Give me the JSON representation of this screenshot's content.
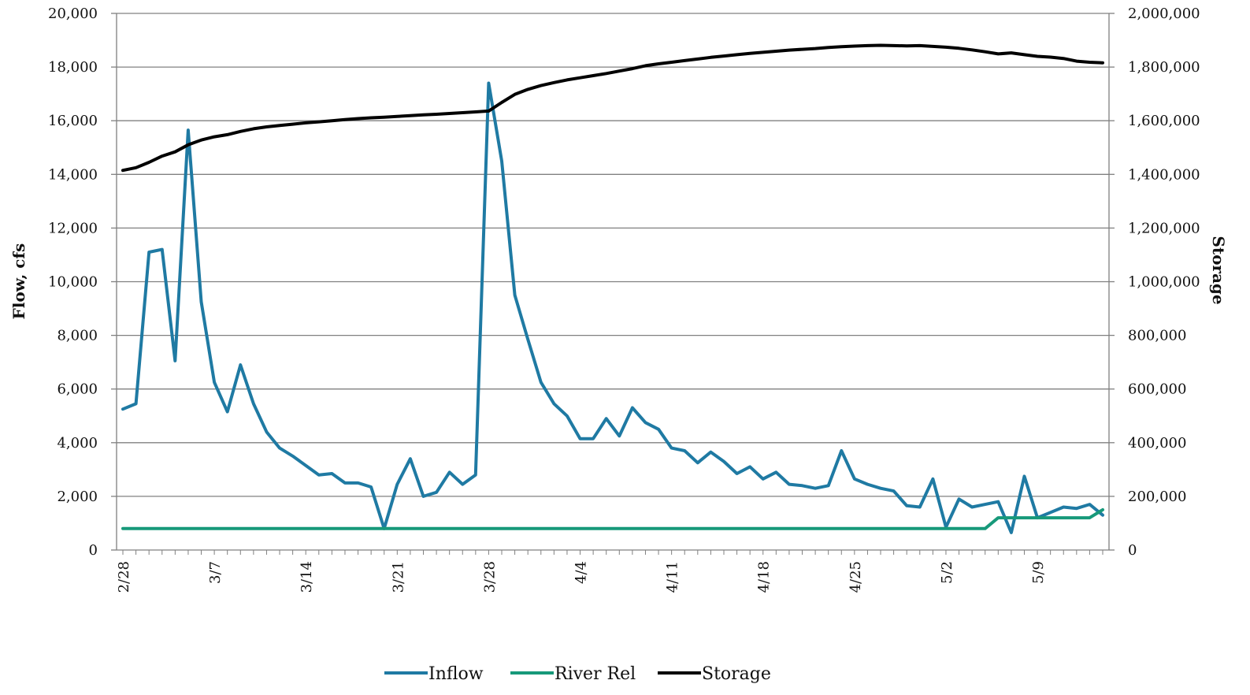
{
  "chart_data": {
    "type": "line",
    "x": [
      "2/28",
      "3/1",
      "3/2",
      "3/3",
      "3/4",
      "3/5",
      "3/6",
      "3/7",
      "3/8",
      "3/9",
      "3/10",
      "3/11",
      "3/12",
      "3/13",
      "3/14",
      "3/15",
      "3/16",
      "3/17",
      "3/18",
      "3/19",
      "3/20",
      "3/21",
      "3/22",
      "3/23",
      "3/24",
      "3/25",
      "3/26",
      "3/27",
      "3/28",
      "3/29",
      "3/30",
      "3/31",
      "4/1",
      "4/2",
      "4/3",
      "4/4",
      "4/5",
      "4/6",
      "4/7",
      "4/8",
      "4/9",
      "4/10",
      "4/11",
      "4/12",
      "4/13",
      "4/14",
      "4/15",
      "4/16",
      "4/17",
      "4/18",
      "4/19",
      "4/20",
      "4/21",
      "4/22",
      "4/23",
      "4/24",
      "4/25",
      "4/26",
      "4/27",
      "4/28",
      "4/29",
      "4/30",
      "5/1",
      "5/2",
      "5/3",
      "5/4",
      "5/5",
      "5/6",
      "5/7",
      "5/8",
      "5/9",
      "5/10",
      "5/11",
      "5/12",
      "5/13",
      "5/14"
    ],
    "xticks": [
      "2/28",
      "3/7",
      "3/14",
      "3/21",
      "3/28",
      "4/4",
      "4/11",
      "4/18",
      "4/25",
      "5/2",
      "5/9"
    ],
    "series": [
      {
        "name": "Inflow",
        "axis": "left",
        "color": "#1f7aa3",
        "values": [
          5250,
          5450,
          11100,
          11200,
          7050,
          15650,
          9250,
          6250,
          5150,
          6900,
          5450,
          4400,
          3800,
          3500,
          3150,
          2800,
          2850,
          2500,
          2500,
          2350,
          800,
          2450,
          3400,
          2000,
          2150,
          2900,
          2450,
          2800,
          17400,
          14500,
          9500,
          7850,
          6250,
          5450,
          5000,
          4150,
          4150,
          4900,
          4250,
          5300,
          4750,
          4500,
          3800,
          3700,
          3250,
          3650,
          3300,
          2850,
          3100,
          2650,
          2900,
          2450,
          2400,
          2300,
          2400,
          3700,
          2650,
          2450,
          2300,
          2200,
          1650,
          1600,
          2650,
          850,
          1900,
          1600,
          1700,
          1800,
          650,
          2750,
          1200,
          1400,
          1600,
          1550,
          1700,
          1300
        ]
      },
      {
        "name": "River Rel",
        "axis": "left",
        "color": "#17997a",
        "values": [
          800,
          800,
          800,
          800,
          800,
          800,
          800,
          800,
          800,
          800,
          800,
          800,
          800,
          800,
          800,
          800,
          800,
          800,
          800,
          800,
          800,
          800,
          800,
          800,
          800,
          800,
          800,
          800,
          800,
          800,
          800,
          800,
          800,
          800,
          800,
          800,
          800,
          800,
          800,
          800,
          800,
          800,
          800,
          800,
          800,
          800,
          800,
          800,
          800,
          800,
          800,
          800,
          800,
          800,
          800,
          800,
          800,
          800,
          800,
          800,
          800,
          800,
          800,
          800,
          800,
          800,
          800,
          1200,
          1200,
          1200,
          1200,
          1200,
          1200,
          1200,
          1200,
          1500
        ]
      },
      {
        "name": "Storage",
        "axis": "right",
        "color": "#000000",
        "values": [
          1415000,
          1425000,
          1445000,
          1468000,
          1484000,
          1510000,
          1528000,
          1540000,
          1548000,
          1560000,
          1570000,
          1577000,
          1582000,
          1587000,
          1592000,
          1596000,
          1600000,
          1604000,
          1608000,
          1611000,
          1613000,
          1616000,
          1619000,
          1622000,
          1624000,
          1627000,
          1630000,
          1633000,
          1636000,
          1668000,
          1698000,
          1717000,
          1731000,
          1742000,
          1752000,
          1760000,
          1768000,
          1776000,
          1785000,
          1794000,
          1805000,
          1812000,
          1818000,
          1824000,
          1830000,
          1836000,
          1841000,
          1846000,
          1851000,
          1855000,
          1859000,
          1863000,
          1866000,
          1869000,
          1873000,
          1876000,
          1878000,
          1880000,
          1881000,
          1880000,
          1879000,
          1880000,
          1877000,
          1874000,
          1870000,
          1864000,
          1857000,
          1849000,
          1853000,
          1846000,
          1840000,
          1837000,
          1832000,
          1822000,
          1818000,
          1816000
        ]
      }
    ],
    "ylabel": "Flow, cfs",
    "y2label": "Storage",
    "ylim": [
      0,
      20000
    ],
    "y2lim": [
      0,
      2000000
    ],
    "yticks": [
      "0",
      "2,000",
      "4,000",
      "6,000",
      "8,000",
      "10,000",
      "12,000",
      "14,000",
      "16,000",
      "18,000",
      "20,000"
    ],
    "y2ticks": [
      "0",
      "200,000",
      "400,000",
      "600,000",
      "800,000",
      "1,000,000",
      "1,200,000",
      "1,400,000",
      "1,600,000",
      "1,800,000",
      "2,000,000"
    ],
    "grid": true,
    "legend_position": "bottom"
  }
}
